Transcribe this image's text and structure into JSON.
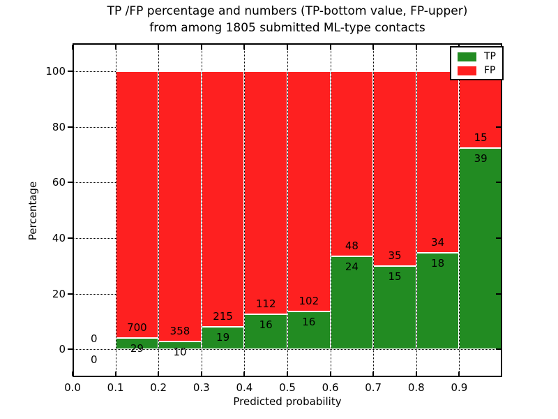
{
  "title": {
    "line1": "TP /FP percentage and numbers (TP-bottom value, FP-upper)",
    "line2": "from among 1805 submitted ML-type contacts"
  },
  "chart_data": {
    "type": "bar",
    "stacked": true,
    "title": "TP /FP percentage and numbers (TP-bottom value, FP-upper)\nfrom among 1805 submitted ML-type contacts",
    "xlabel": "Predicted probability",
    "ylabel": "Percentage",
    "xlim": [
      0.0,
      1.0
    ],
    "ylim": [
      -10,
      110
    ],
    "grid": true,
    "grid_style": "dotted",
    "legend_position": "upper right",
    "total_contacts": 1805,
    "xticks": [
      0.0,
      0.1,
      0.2,
      0.3,
      0.4,
      0.5,
      0.6,
      0.7,
      0.8,
      0.9
    ],
    "xtick_labels": [
      "0.0",
      "0.1",
      "0.2",
      "0.3",
      "0.4",
      "0.5",
      "0.6",
      "0.7",
      "0.8",
      "0.9"
    ],
    "yticks": [
      0,
      20,
      40,
      60,
      80,
      100
    ],
    "ytick_labels": [
      "0",
      "20",
      "40",
      "60",
      "80",
      "100"
    ],
    "series": [
      {
        "name": "TP",
        "color": "#228b22"
      },
      {
        "name": "FP",
        "color": "#fe2020"
      }
    ],
    "bins": [
      {
        "range": [
          0.0,
          0.1
        ],
        "tp": 0,
        "fp": 0,
        "tp_pct": 0,
        "fp_pct": 0
      },
      {
        "range": [
          0.1,
          0.2
        ],
        "tp": 29,
        "fp": 700,
        "tp_pct": 3.98,
        "fp_pct": 96.02
      },
      {
        "range": [
          0.2,
          0.3
        ],
        "tp": 10,
        "fp": 358,
        "tp_pct": 2.72,
        "fp_pct": 97.28
      },
      {
        "range": [
          0.3,
          0.4
        ],
        "tp": 19,
        "fp": 215,
        "tp_pct": 8.12,
        "fp_pct": 91.88
      },
      {
        "range": [
          0.4,
          0.5
        ],
        "tp": 16,
        "fp": 112,
        "tp_pct": 12.5,
        "fp_pct": 87.5
      },
      {
        "range": [
          0.5,
          0.6
        ],
        "tp": 16,
        "fp": 102,
        "tp_pct": 13.56,
        "fp_pct": 86.44
      },
      {
        "range": [
          0.6,
          0.7
        ],
        "tp": 24,
        "fp": 48,
        "tp_pct": 33.33,
        "fp_pct": 66.67
      },
      {
        "range": [
          0.7,
          0.8
        ],
        "tp": 15,
        "fp": 35,
        "tp_pct": 30.0,
        "fp_pct": 70.0
      },
      {
        "range": [
          0.8,
          0.9
        ],
        "tp": 18,
        "fp": 34,
        "tp_pct": 34.62,
        "fp_pct": 65.38
      },
      {
        "range": [
          0.9,
          1.0
        ],
        "tp": 39,
        "fp": 15,
        "tp_pct": 72.22,
        "fp_pct": 27.78
      }
    ],
    "colors": {
      "tp": "#228b22",
      "fp": "#fe2020",
      "grid": "#000000",
      "bar_edge": "#ffffff",
      "background": "#ffffff"
    }
  },
  "legend": {
    "entries": [
      {
        "label": "TP",
        "color": "#228b22"
      },
      {
        "label": "FP",
        "color": "#fe2020"
      }
    ]
  }
}
